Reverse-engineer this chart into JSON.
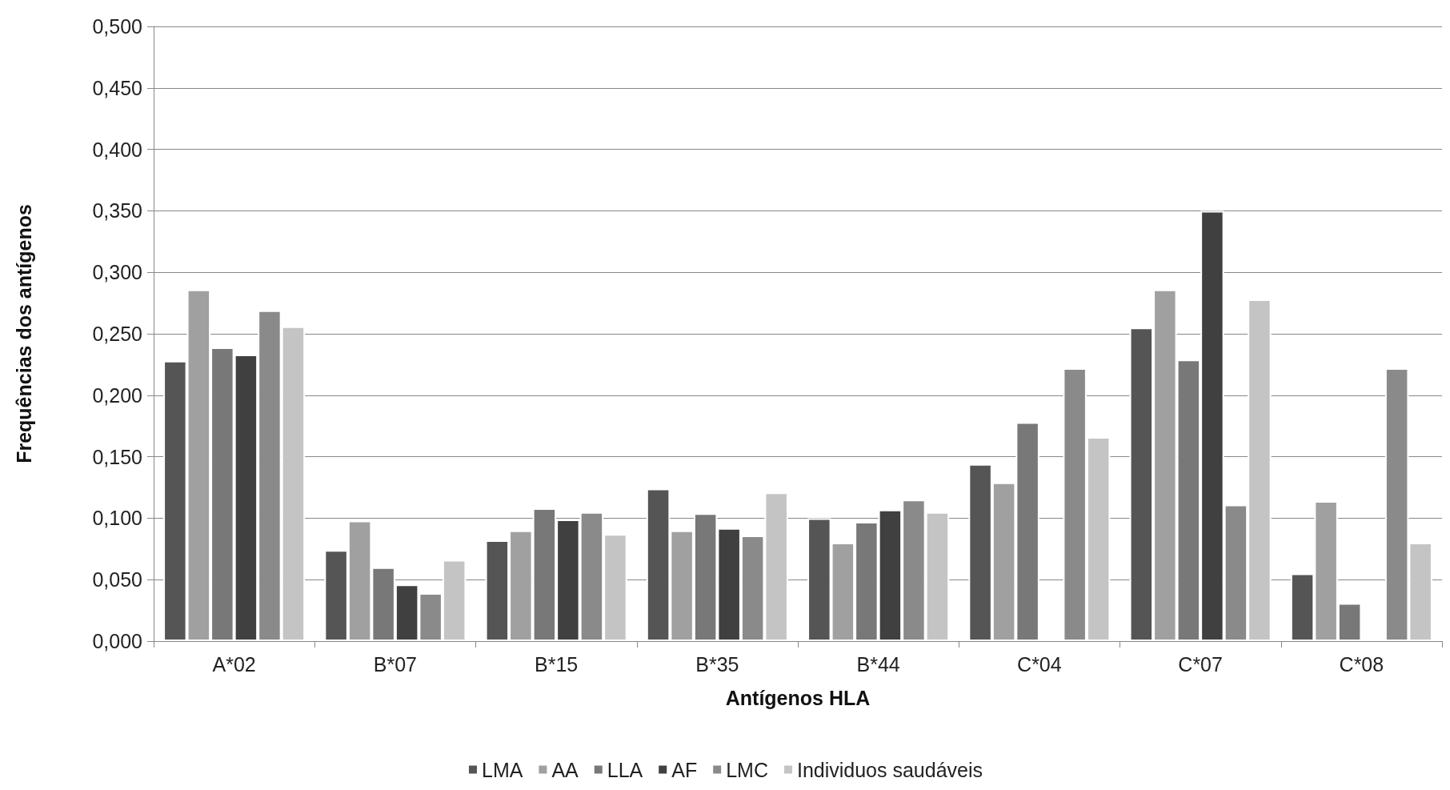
{
  "chart_data": {
    "type": "bar",
    "xlabel": "Antígenos HLA",
    "ylabel": "Frequências dos antígenos",
    "categories": [
      "A*02",
      "B*07",
      "B*15",
      "B*35",
      "B*44",
      "C*04",
      "C*07",
      "C*08"
    ],
    "series": [
      {
        "name": "LMA",
        "color": "#555555",
        "values": [
          0.228,
          0.074,
          0.082,
          0.124,
          0.1,
          0.144,
          0.255,
          0.055
        ]
      },
      {
        "name": "AA",
        "color": "#a0a0a0",
        "values": [
          0.286,
          0.098,
          0.09,
          0.09,
          0.08,
          0.129,
          0.286,
          0.114
        ]
      },
      {
        "name": "LLA",
        "color": "#787878",
        "values": [
          0.239,
          0.06,
          0.108,
          0.104,
          0.097,
          0.178,
          0.229,
          0.031
        ]
      },
      {
        "name": "AF",
        "color": "#404040",
        "values": [
          0.233,
          0.046,
          0.099,
          0.092,
          0.107,
          null,
          0.35,
          null
        ]
      },
      {
        "name": "LMC",
        "color": "#8a8a8a",
        "values": [
          0.269,
          0.039,
          0.105,
          0.086,
          0.115,
          0.222,
          0.111,
          0.222
        ]
      },
      {
        "name": "Individuos saudáveis",
        "color": "#c4c4c4",
        "values": [
          0.256,
          0.066,
          0.087,
          0.121,
          0.105,
          0.166,
          0.278,
          0.08
        ]
      }
    ],
    "ylim": [
      0,
      0.5
    ],
    "yticks": [
      {
        "value": 0,
        "label": "0,000"
      },
      {
        "value": 0.05,
        "label": "0,050"
      },
      {
        "value": 0.1,
        "label": "0,100"
      },
      {
        "value": 0.15,
        "label": "0,150"
      },
      {
        "value": 0.2,
        "label": "0,200"
      },
      {
        "value": 0.25,
        "label": "0,250"
      },
      {
        "value": 0.3,
        "label": "0,300"
      },
      {
        "value": 0.35,
        "label": "0,350"
      },
      {
        "value": 0.4,
        "label": "0,400"
      },
      {
        "value": 0.45,
        "label": "0,450"
      },
      {
        "value": 0.5,
        "label": "0,500"
      }
    ],
    "grid": "y",
    "legend": "bottom"
  }
}
